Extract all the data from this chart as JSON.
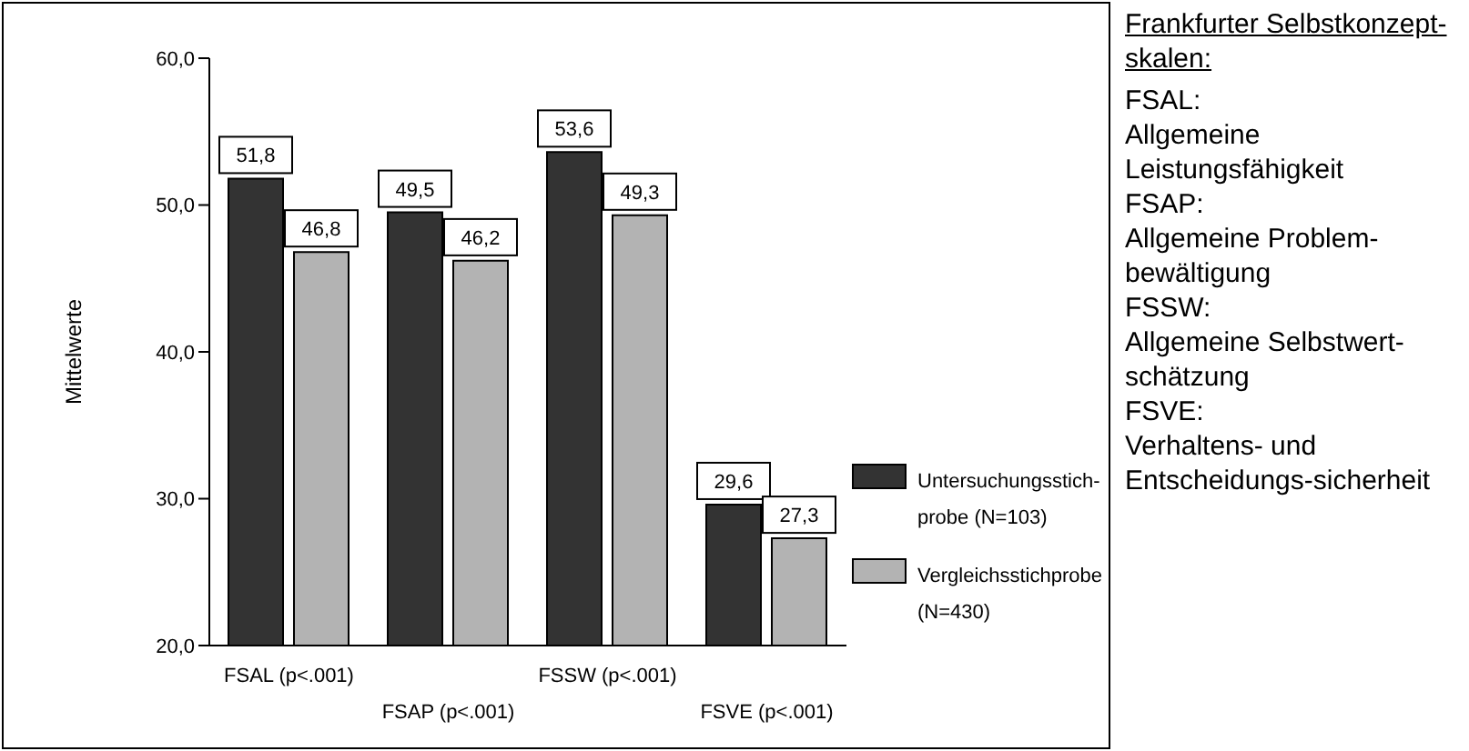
{
  "chart_data": {
    "type": "bar",
    "ylabel": "Mittelwerte",
    "categories": [
      "FSAL (p<.001)",
      "FSAP (p<.001)",
      "FSSW (p<.001)",
      "FSVE (p<.001)"
    ],
    "series": [
      {
        "name": "Untersuchungsstich-probe (N=103)",
        "color": "#333333",
        "values": [
          51.8,
          49.5,
          53.6,
          29.6
        ],
        "value_labels": [
          "51,8",
          "49,5",
          "53,6",
          "29,6"
        ]
      },
      {
        "name": "Vergleichsstichprobe (N=430)",
        "color": "#b3b3b3",
        "values": [
          46.8,
          46.2,
          49.3,
          27.3
        ],
        "value_labels": [
          "46,8",
          "46,2",
          "49,3",
          "27,3"
        ]
      }
    ],
    "ylim": [
      20,
      60
    ],
    "yticks": [
      {
        "value": 20,
        "label": "20,0"
      },
      {
        "value": 30,
        "label": "30,0"
      },
      {
        "value": 40,
        "label": "40,0"
      },
      {
        "value": 50,
        "label": "50,0"
      },
      {
        "value": 60,
        "label": "60,0"
      }
    ],
    "grid": false,
    "legend": "right",
    "annotations": [
      "Frankfurter Selbstkonzept-skalen:",
      "FSAL:",
      "Allgemeine Leistungsfähigkeit",
      "FSAP:",
      "Allgemeine Problem-bewältigung",
      "FSSW:",
      "Allgemeine Selbstwert-schätzung",
      "FSVE:",
      "Verhaltens- und Entscheidungs-sicherheit"
    ]
  }
}
